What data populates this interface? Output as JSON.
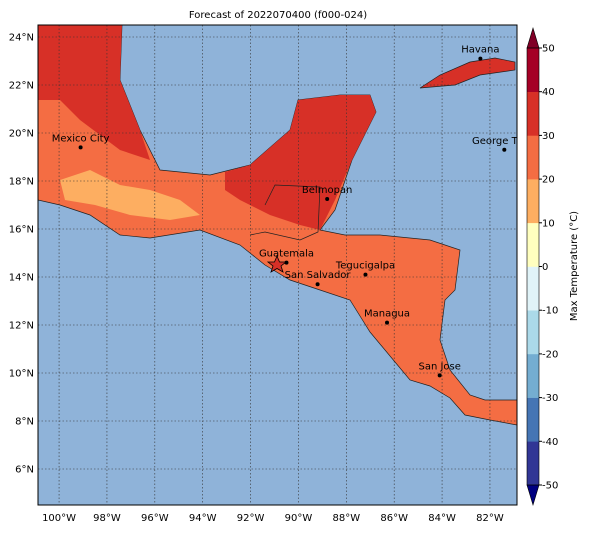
{
  "title": "Forecast of 2022070400 (f000-024)",
  "map": {
    "lonlim": [
      -100.88,
      -80.87
    ],
    "latlim": [
      4.5,
      24.5
    ],
    "lonticks": [
      {
        "value": -100,
        "label": "100°W"
      },
      {
        "value": -98,
        "label": "98°W"
      },
      {
        "value": -96,
        "label": "96°W"
      },
      {
        "value": -94,
        "label": "94°W"
      },
      {
        "value": -92,
        "label": "92°W"
      },
      {
        "value": -90,
        "label": "90°W"
      },
      {
        "value": -88,
        "label": "88°W"
      },
      {
        "value": -86,
        "label": "86°W"
      },
      {
        "value": -84,
        "label": "84°W"
      },
      {
        "value": -82,
        "label": "82°W"
      }
    ],
    "latticks": [
      {
        "value": 6,
        "label": "6°N"
      },
      {
        "value": 8,
        "label": "8°N"
      },
      {
        "value": 10,
        "label": "10°N"
      },
      {
        "value": 12,
        "label": "12°N"
      },
      {
        "value": 14,
        "label": "14°N"
      },
      {
        "value": 16,
        "label": "16°N"
      },
      {
        "value": 18,
        "label": "18°N"
      },
      {
        "value": 20,
        "label": "20°N"
      },
      {
        "value": 22,
        "label": "22°N"
      },
      {
        "value": 24,
        "label": "24°N"
      }
    ],
    "cities": [
      {
        "name": "Mexico City",
        "lon": -99.1,
        "lat": 19.4
      },
      {
        "name": "Belmopan",
        "lon": -88.8,
        "lat": 17.25
      },
      {
        "name": "Guatemala",
        "lon": -90.5,
        "lat": 14.6
      },
      {
        "name": "San Salvador",
        "lon": -89.2,
        "lat": 13.7
      },
      {
        "name": "Tegucigalpa",
        "lon": -87.2,
        "lat": 14.1
      },
      {
        "name": "Managua",
        "lon": -86.3,
        "lat": 12.1
      },
      {
        "name": "San Jose",
        "lon": -84.1,
        "lat": 9.9
      },
      {
        "name": "Havana",
        "lon": -82.4,
        "lat": 23.1
      },
      {
        "name": "George Town",
        "lon": -81.4,
        "lat": 19.3
      }
    ]
  },
  "colorbar": {
    "label": "Max Temperature (°C)",
    "lim": [
      -50,
      50
    ],
    "ticks": [
      -50,
      -40,
      -30,
      -20,
      -10,
      0,
      10,
      20,
      30,
      40,
      50
    ],
    "colors": [
      "#313695",
      "#4575b4",
      "#74add1",
      "#abd9e9",
      "#e0f3f8",
      "#ffffbf",
      "#fdae61",
      "#f46d43",
      "#d73027",
      "#a50026"
    ],
    "under": "#000080",
    "over": "#800026"
  }
}
